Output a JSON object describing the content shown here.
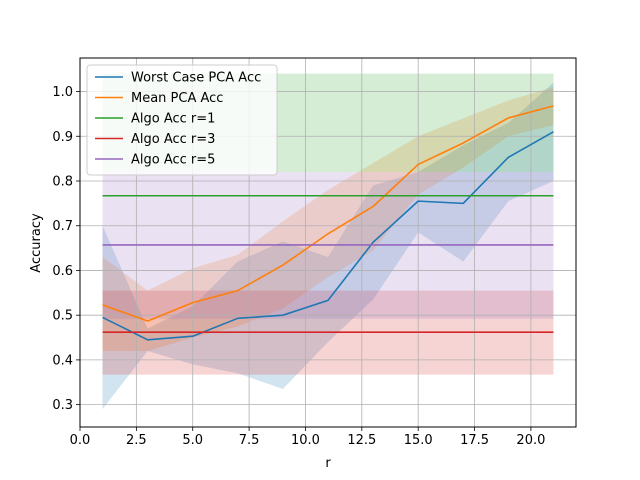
{
  "chart_data": {
    "type": "line",
    "xlabel": "r",
    "ylabel": "Accuracy",
    "xlim": [
      0.0,
      22.0
    ],
    "ylim": [
      0.25,
      1.075
    ],
    "xticks": [
      0.0,
      2.5,
      5.0,
      7.5,
      10.0,
      12.5,
      15.0,
      17.5,
      20.0
    ],
    "xtick_labels": [
      "0.0",
      "2.5",
      "5.0",
      "7.5",
      "10.0",
      "12.5",
      "15.0",
      "17.5",
      "20.0"
    ],
    "yticks": [
      0.3,
      0.4,
      0.5,
      0.6,
      0.7,
      0.8,
      0.9,
      1.0
    ],
    "ytick_labels": [
      "0.3",
      "0.4",
      "0.5",
      "0.6",
      "0.7",
      "0.8",
      "0.9",
      "1.0"
    ],
    "grid": true,
    "legend_position": "top-left",
    "x": [
      1,
      3,
      5,
      7,
      9,
      11,
      13,
      15,
      17,
      19,
      21
    ],
    "series": [
      {
        "name": "Worst Case PCA Acc",
        "color": "#1f77b4",
        "values": [
          0.495,
          0.445,
          0.453,
          0.493,
          0.5,
          0.533,
          0.663,
          0.755,
          0.75,
          0.853,
          0.91
        ],
        "upper": [
          0.7,
          0.47,
          0.52,
          0.62,
          0.665,
          0.63,
          0.79,
          0.82,
          0.88,
          0.93,
          1.02
        ],
        "lower": [
          0.29,
          0.42,
          0.39,
          0.37,
          0.335,
          0.44,
          0.535,
          0.685,
          0.62,
          0.755,
          0.8
        ]
      },
      {
        "name": "Mean PCA Acc",
        "color": "#ff7f0e",
        "values": [
          0.523,
          0.487,
          0.528,
          0.555,
          0.612,
          0.682,
          0.743,
          0.837,
          0.885,
          0.941,
          0.968
        ],
        "upper": [
          0.63,
          0.555,
          0.605,
          0.635,
          0.71,
          0.78,
          0.84,
          0.9,
          0.94,
          0.98,
          1.01
        ],
        "lower": [
          0.42,
          0.42,
          0.45,
          0.475,
          0.515,
          0.585,
          0.645,
          0.77,
          0.83,
          0.9,
          0.925
        ]
      },
      {
        "name": "Algo Acc r=1",
        "color": "#2ca02c",
        "values": [
          0.767,
          0.767,
          0.767,
          0.767,
          0.767,
          0.767,
          0.767,
          0.767,
          0.767,
          0.767,
          0.767
        ],
        "upper": [
          1.04,
          1.04,
          1.04,
          1.04,
          1.04,
          1.04,
          1.04,
          1.04,
          1.04,
          1.04,
          1.04
        ],
        "lower": [
          0.82,
          0.82,
          0.82,
          0.82,
          0.82,
          0.82,
          0.82,
          0.82,
          0.82,
          0.82,
          0.82
        ]
      },
      {
        "name": "Algo Acc r=3",
        "color": "#d62728",
        "values": [
          0.462,
          0.462,
          0.462,
          0.462,
          0.462,
          0.462,
          0.462,
          0.462,
          0.462,
          0.462,
          0.462
        ],
        "upper": [
          0.555,
          0.555,
          0.555,
          0.555,
          0.555,
          0.555,
          0.555,
          0.555,
          0.555,
          0.555,
          0.555
        ],
        "lower": [
          0.367,
          0.367,
          0.367,
          0.367,
          0.367,
          0.367,
          0.367,
          0.367,
          0.367,
          0.367,
          0.367
        ]
      },
      {
        "name": "Algo Acc r=5",
        "color": "#9467bd",
        "values": [
          0.657,
          0.657,
          0.657,
          0.657,
          0.657,
          0.657,
          0.657,
          0.657,
          0.657,
          0.657,
          0.657
        ],
        "upper": [
          0.82,
          0.82,
          0.82,
          0.82,
          0.82,
          0.82,
          0.82,
          0.82,
          0.82,
          0.82,
          0.82
        ],
        "lower": [
          0.492,
          0.492,
          0.492,
          0.492,
          0.492,
          0.492,
          0.492,
          0.492,
          0.492,
          0.492,
          0.492
        ]
      }
    ]
  }
}
